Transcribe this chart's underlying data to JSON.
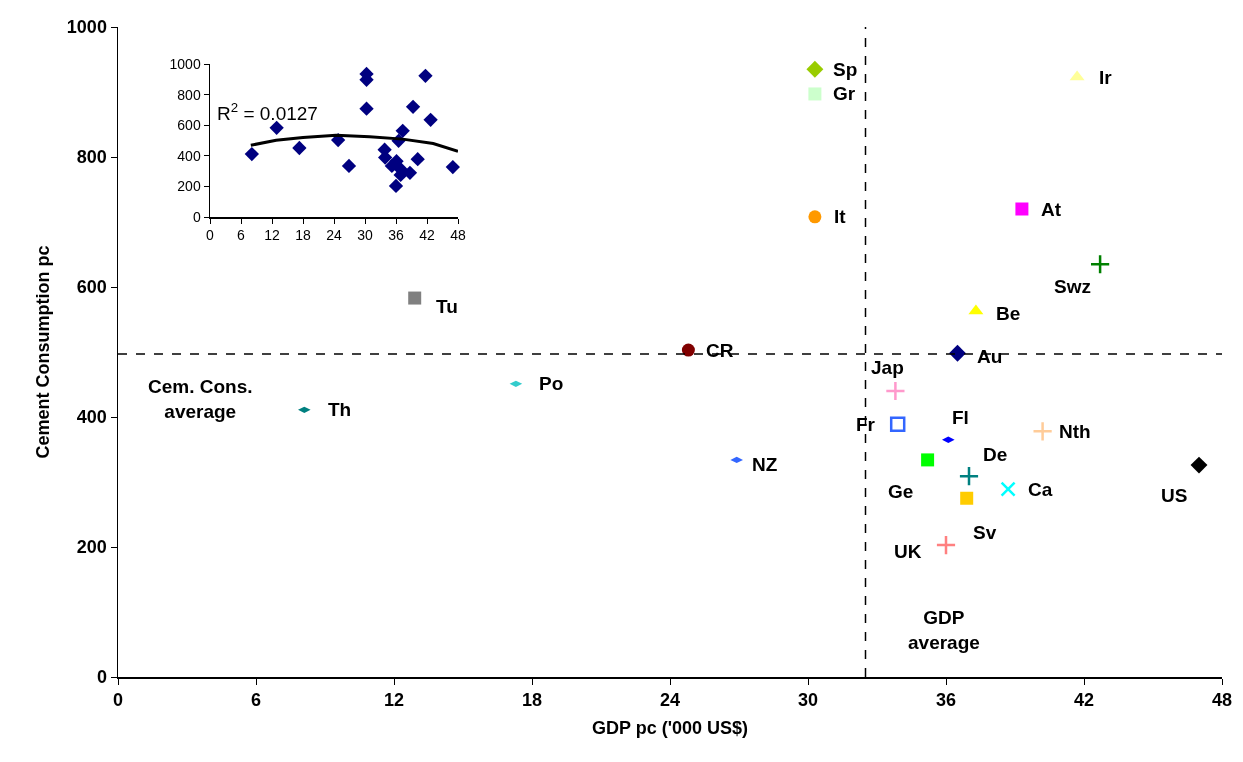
{
  "chart_data": [
    {
      "type": "scatter",
      "xlabel": "GDP pc ('000 US$)",
      "ylabel": "Cement Consumption pc",
      "xlim": [
        0,
        48
      ],
      "ylim": [
        0,
        1000
      ],
      "xticks": [
        0,
        6,
        12,
        18,
        24,
        30,
        36,
        42,
        48
      ],
      "yticks": [
        0,
        200,
        400,
        600,
        800,
        1000
      ],
      "grid": false,
      "legend": false,
      "ref_lines": [
        {
          "axis": "x",
          "value": 32.5,
          "label": "GDP\naverage",
          "color": "#000000",
          "line_style": "dashed"
        },
        {
          "axis": "y",
          "value": 497,
          "label": "Cem. Cons.\naverage",
          "color": "#000000",
          "line_style": "dashed"
        }
      ],
      "series": [
        {
          "name": "Sp",
          "color": "#99cc00",
          "marker": "diamond",
          "x": [
            30.3
          ],
          "values": [
            935
          ]
        },
        {
          "name": "Gr",
          "color": "#ccffcc",
          "marker": "square",
          "x": [
            30.3
          ],
          "values": [
            897
          ]
        },
        {
          "name": "Ir",
          "color": "#ffff99",
          "marker": "triangle",
          "x": [
            41.7
          ],
          "values": [
            923
          ]
        },
        {
          "name": "It",
          "color": "#ff9900",
          "marker": "circle",
          "x": [
            30.3
          ],
          "values": [
            708
          ]
        },
        {
          "name": "At",
          "color": "#ff00ff",
          "marker": "square",
          "x": [
            39.3
          ],
          "values": [
            720
          ]
        },
        {
          "name": "Swz",
          "color": "#008000",
          "marker": "cross",
          "x": [
            42.7
          ],
          "values": [
            635
          ]
        },
        {
          "name": "Tu",
          "color": "#808080",
          "marker": "square",
          "x": [
            12.9
          ],
          "values": [
            583
          ]
        },
        {
          "name": "Be",
          "color": "#ffff00",
          "marker": "triangle",
          "x": [
            37.3
          ],
          "values": [
            563
          ]
        },
        {
          "name": "CR",
          "color": "#800000",
          "marker": "circle",
          "x": [
            24.8
          ],
          "values": [
            503
          ]
        },
        {
          "name": "Au",
          "color": "#000080",
          "marker": "diamond",
          "x": [
            36.5
          ],
          "values": [
            498
          ]
        },
        {
          "name": "Jap",
          "color": "#ff99cc",
          "marker": "cross",
          "x": [
            33.8
          ],
          "values": [
            440
          ]
        },
        {
          "name": "Po",
          "color": "#33cccc",
          "x": [
            17.3
          ],
          "values": [
            451
          ]
        },
        {
          "name": "Th",
          "color": "#008080",
          "x": [
            8.1
          ],
          "values": [
            411
          ]
        },
        {
          "name": "Fr",
          "color": "#3366ff",
          "marker": "square-open",
          "x": [
            33.9
          ],
          "values": [
            389
          ]
        },
        {
          "name": "Fl",
          "color": "#0000ff",
          "x": [
            36.1
          ],
          "values": [
            365
          ]
        },
        {
          "name": "Nth",
          "color": "#ffcc99",
          "marker": "cross",
          "x": [
            40.2
          ],
          "values": [
            378
          ]
        },
        {
          "name": "NZ",
          "color": "#3366ff",
          "x": [
            26.9
          ],
          "values": [
            334
          ]
        },
        {
          "name": "Ge",
          "color": "#00ff00",
          "marker": "square",
          "x": [
            35.2
          ],
          "values": [
            334
          ]
        },
        {
          "name": "De",
          "color": "#008080",
          "marker": "cross",
          "x": [
            37.0
          ],
          "values": [
            309
          ]
        },
        {
          "name": "US",
          "color": "#000000",
          "marker": "diamond",
          "x": [
            47.0
          ],
          "values": [
            326
          ]
        },
        {
          "name": "Ca",
          "color": "#00ffff",
          "marker": "x",
          "x": [
            38.7
          ],
          "values": [
            289
          ]
        },
        {
          "name": "Sv",
          "color": "#ffcc00",
          "marker": "square",
          "x": [
            36.9
          ],
          "values": [
            275
          ]
        },
        {
          "name": "UK",
          "color": "#ff8080",
          "marker": "cross",
          "x": [
            36.0
          ],
          "values": [
            203
          ]
        }
      ]
    },
    {
      "type": "scatter",
      "xlim": [
        0,
        48
      ],
      "ylim": [
        0,
        1000
      ],
      "xticks": [
        0,
        6,
        12,
        18,
        24,
        30,
        36,
        42,
        48
      ],
      "yticks": [
        0,
        200,
        400,
        600,
        800,
        1000
      ],
      "grid": false,
      "legend": false,
      "marker": "diamond",
      "annotations": [
        "R$^{2}$ = 0.0127"
      ],
      "series": [
        {
          "color": "#000080",
          "x": [
            30.3,
            30.3,
            41.7,
            30.3,
            39.3,
            42.7,
            12.9,
            37.3,
            24.8,
            36.5,
            33.8,
            17.3,
            8.1,
            33.9,
            36.1,
            40.2,
            26.9,
            35.2,
            37.0,
            47.0,
            38.7,
            36.9,
            36.0
          ],
          "values": [
            935,
            897,
            923,
            708,
            720,
            635,
            583,
            563,
            503,
            498,
            440,
            451,
            411,
            389,
            365,
            378,
            334,
            334,
            309,
            326,
            289,
            275,
            203
          ]
        },
        {
          "type": "line",
          "color": "#000000",
          "marker": "none",
          "x": [
            7.9,
            12.8,
            18,
            24.4,
            30.9,
            37.3,
            43.2,
            48
          ],
          "values": [
            469,
            502,
            520,
            535,
            524,
            509,
            480,
            430
          ]
        }
      ]
    }
  ]
}
